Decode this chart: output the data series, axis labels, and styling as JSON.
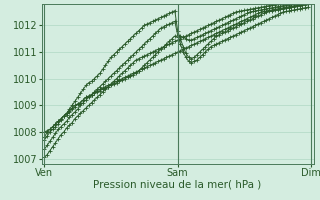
{
  "title": "Pression niveau de la mer( hPa )",
  "bg_color": "#d4ede0",
  "grid_color": "#b0d8c4",
  "line_color": "#2a5a2a",
  "vline_color": "#4a7a5a",
  "marker": "+",
  "xtick_labels": [
    "Ven",
    "Sam",
    "Dim"
  ],
  "xtick_positions": [
    0,
    48,
    96
  ],
  "ylim": [
    1006.8,
    1012.8
  ],
  "xlim": [
    -1,
    97
  ],
  "yticks": [
    1007,
    1008,
    1009,
    1010,
    1011,
    1012
  ],
  "series": [
    {
      "x": [
        0,
        1,
        2,
        3,
        4,
        5,
        6,
        7,
        8,
        9,
        10,
        11,
        12,
        13,
        14,
        15,
        16,
        17,
        18,
        19,
        20,
        21,
        22,
        23,
        24,
        25,
        26,
        27,
        28,
        29,
        30,
        31,
        32,
        33,
        34,
        35,
        36,
        37,
        38,
        39,
        40,
        41,
        42,
        43,
        44,
        45,
        46,
        47,
        48,
        49,
        50,
        51,
        52,
        53,
        54,
        55,
        56,
        57,
        58,
        59,
        60,
        61,
        62,
        63,
        64,
        65,
        66,
        67,
        68,
        69,
        70,
        71,
        72,
        73,
        74,
        75,
        76,
        77,
        78,
        79,
        80,
        81,
        82,
        83,
        84,
        85,
        86,
        87,
        88,
        89,
        90,
        91,
        92,
        93,
        94,
        95
      ],
      "y": [
        1007.05,
        1007.15,
        1007.3,
        1007.45,
        1007.6,
        1007.75,
        1007.9,
        1008.0,
        1008.15,
        1008.25,
        1008.35,
        1008.5,
        1008.6,
        1008.7,
        1008.8,
        1008.9,
        1009.0,
        1009.1,
        1009.2,
        1009.3,
        1009.4,
        1009.5,
        1009.6,
        1009.7,
        1009.8,
        1009.9,
        1010.0,
        1010.1,
        1010.2,
        1010.3,
        1010.4,
        1010.5,
        1010.6,
        1010.7,
        1010.75,
        1010.8,
        1010.85,
        1010.9,
        1010.95,
        1011.0,
        1011.05,
        1011.1,
        1011.15,
        1011.2,
        1011.25,
        1011.3,
        1011.35,
        1011.4,
        1011.45,
        1011.5,
        1011.55,
        1011.6,
        1011.65,
        1011.7,
        1011.75,
        1011.8,
        1011.85,
        1011.9,
        1011.95,
        1012.0,
        1012.05,
        1012.1,
        1012.15,
        1012.2,
        1012.25,
        1012.3,
        1012.35,
        1012.4,
        1012.45,
        1012.5,
        1012.52,
        1012.54,
        1012.56,
        1012.58,
        1012.6,
        1012.62,
        1012.64,
        1012.66,
        1012.68,
        1012.7,
        1012.72,
        1012.74,
        1012.76,
        1012.78,
        1012.8,
        1012.82,
        1012.84,
        1012.86,
        1012.88,
        1012.9,
        1012.92,
        1012.94,
        1012.96,
        1012.98,
        1013.0,
        1013.02
      ]
    },
    {
      "x": [
        0,
        1,
        2,
        3,
        4,
        5,
        6,
        7,
        8,
        9,
        10,
        11,
        12,
        13,
        14,
        15,
        16,
        17,
        18,
        19,
        20,
        21,
        22,
        23,
        24,
        25,
        26,
        27,
        28,
        29,
        30,
        31,
        32,
        33,
        34,
        35,
        36,
        37,
        38,
        39,
        40,
        41,
        42,
        43,
        44,
        45,
        46,
        47,
        48,
        49,
        50,
        51,
        52,
        53,
        54,
        55,
        56,
        57,
        58,
        59,
        60,
        61,
        62,
        63,
        64,
        65,
        66,
        67,
        68,
        69,
        70,
        71,
        72,
        73,
        74,
        75,
        76,
        77,
        78,
        79,
        80,
        81,
        82,
        83,
        84,
        85,
        86,
        87,
        88,
        89,
        90,
        91,
        92,
        93,
        94,
        95
      ],
      "y": [
        1007.7,
        1007.85,
        1008.0,
        1008.1,
        1008.2,
        1008.3,
        1008.45,
        1008.6,
        1008.7,
        1008.85,
        1009.0,
        1009.15,
        1009.3,
        1009.45,
        1009.6,
        1009.75,
        1009.85,
        1009.9,
        1010.0,
        1010.1,
        1010.2,
        1010.35,
        1010.5,
        1010.65,
        1010.8,
        1010.9,
        1011.0,
        1011.1,
        1011.2,
        1011.3,
        1011.4,
        1011.5,
        1011.6,
        1011.7,
        1011.8,
        1011.9,
        1012.0,
        1012.05,
        1012.1,
        1012.15,
        1012.2,
        1012.25,
        1012.3,
        1012.35,
        1012.4,
        1012.45,
        1012.5,
        1012.55,
        1011.8,
        1011.5,
        1011.2,
        1010.95,
        1010.8,
        1010.75,
        1010.8,
        1010.9,
        1011.0,
        1011.1,
        1011.2,
        1011.3,
        1011.4,
        1011.5,
        1011.6,
        1011.65,
        1011.7,
        1011.75,
        1011.8,
        1011.85,
        1011.9,
        1011.95,
        1012.0,
        1012.05,
        1012.1,
        1012.15,
        1012.2,
        1012.25,
        1012.3,
        1012.35,
        1012.4,
        1012.45,
        1012.5,
        1012.52,
        1012.54,
        1012.56,
        1012.58,
        1012.6,
        1012.62,
        1012.64,
        1012.66,
        1012.68,
        1012.7,
        1012.72,
        1012.74,
        1012.76,
        1012.78,
        1012.8
      ]
    },
    {
      "x": [
        0,
        1,
        2,
        3,
        4,
        5,
        6,
        7,
        8,
        9,
        10,
        11,
        12,
        13,
        14,
        15,
        16,
        17,
        18,
        19,
        20,
        21,
        22,
        23,
        24,
        25,
        26,
        27,
        28,
        29,
        30,
        31,
        32,
        33,
        34,
        35,
        36,
        37,
        38,
        39,
        40,
        41,
        42,
        43,
        44,
        45,
        46,
        47,
        48,
        49,
        50,
        51,
        52,
        53,
        54,
        55,
        56,
        57,
        58,
        59,
        60,
        61,
        62,
        63,
        64,
        65,
        66,
        67,
        68,
        69,
        70,
        71,
        72,
        73,
        74,
        75,
        76,
        77,
        78,
        79,
        80,
        81,
        82,
        83,
        84,
        85,
        86,
        87,
        88,
        89,
        90,
        91,
        92,
        93,
        94,
        95
      ],
      "y": [
        1008.0,
        1008.05,
        1008.1,
        1008.2,
        1008.3,
        1008.4,
        1008.5,
        1008.6,
        1008.7,
        1008.8,
        1008.9,
        1009.0,
        1009.05,
        1009.1,
        1009.2,
        1009.3,
        1009.35,
        1009.4,
        1009.5,
        1009.55,
        1009.6,
        1009.65,
        1009.7,
        1009.75,
        1009.8,
        1009.85,
        1009.9,
        1009.95,
        1010.0,
        1010.05,
        1010.1,
        1010.15,
        1010.2,
        1010.25,
        1010.3,
        1010.35,
        1010.4,
        1010.45,
        1010.5,
        1010.55,
        1010.6,
        1010.65,
        1010.7,
        1010.75,
        1010.8,
        1010.85,
        1010.9,
        1010.95,
        1011.0,
        1011.05,
        1011.1,
        1011.15,
        1011.2,
        1011.25,
        1011.3,
        1011.35,
        1011.4,
        1011.45,
        1011.5,
        1011.55,
        1011.6,
        1011.65,
        1011.7,
        1011.75,
        1011.8,
        1011.85,
        1011.9,
        1011.95,
        1012.0,
        1012.05,
        1012.1,
        1012.15,
        1012.2,
        1012.25,
        1012.3,
        1012.35,
        1012.4,
        1012.45,
        1012.5,
        1012.52,
        1012.54,
        1012.56,
        1012.58,
        1012.6,
        1012.62,
        1012.64,
        1012.66,
        1012.68,
        1012.7,
        1012.72,
        1012.74,
        1012.76,
        1012.78,
        1012.8,
        1012.82,
        1012.84
      ]
    },
    {
      "x": [
        0,
        1,
        2,
        3,
        4,
        5,
        6,
        7,
        8,
        9,
        10,
        11,
        12,
        13,
        14,
        15,
        16,
        17,
        18,
        19,
        20,
        21,
        22,
        23,
        24,
        25,
        26,
        27,
        28,
        29,
        30,
        31,
        32,
        33,
        34,
        35,
        36,
        37,
        38,
        39,
        40,
        41,
        42,
        43,
        44,
        45,
        46,
        47,
        48,
        49,
        50,
        51,
        52,
        53,
        54,
        55,
        56,
        57,
        58,
        59,
        60,
        61,
        62,
        63,
        64,
        65,
        66,
        67,
        68,
        69,
        70,
        71,
        72,
        73,
        74,
        75,
        76,
        77,
        78,
        79,
        80,
        81,
        82,
        83,
        84,
        85,
        86,
        87,
        88,
        89,
        90,
        91,
        92,
        93,
        94,
        95
      ],
      "y": [
        1007.8,
        1008.0,
        1008.1,
        1008.2,
        1008.3,
        1008.4,
        1008.5,
        1008.6,
        1008.65,
        1008.75,
        1008.85,
        1008.95,
        1009.05,
        1009.1,
        1009.2,
        1009.3,
        1009.35,
        1009.4,
        1009.45,
        1009.5,
        1009.55,
        1009.6,
        1009.65,
        1009.7,
        1009.75,
        1009.8,
        1009.85,
        1009.9,
        1009.95,
        1010.0,
        1010.05,
        1010.1,
        1010.15,
        1010.2,
        1010.3,
        1010.4,
        1010.5,
        1010.6,
        1010.7,
        1010.8,
        1010.9,
        1011.0,
        1011.1,
        1011.2,
        1011.3,
        1011.4,
        1011.5,
        1011.6,
        1011.55,
        1011.6,
        1011.55,
        1011.5,
        1011.45,
        1011.45,
        1011.5,
        1011.55,
        1011.6,
        1011.65,
        1011.7,
        1011.75,
        1011.8,
        1011.85,
        1011.9,
        1011.95,
        1012.0,
        1012.05,
        1012.1,
        1012.15,
        1012.2,
        1012.25,
        1012.3,
        1012.35,
        1012.4,
        1012.45,
        1012.5,
        1012.52,
        1012.54,
        1012.56,
        1012.58,
        1012.6,
        1012.62,
        1012.64,
        1012.66,
        1012.68,
        1012.7,
        1012.72,
        1012.74,
        1012.76,
        1012.78,
        1012.8,
        1012.82,
        1012.84,
        1012.86,
        1012.88,
        1012.9,
        1012.92
      ]
    },
    {
      "x": [
        0,
        1,
        2,
        3,
        4,
        5,
        6,
        7,
        8,
        9,
        10,
        11,
        12,
        13,
        14,
        15,
        16,
        17,
        18,
        19,
        20,
        21,
        22,
        23,
        24,
        25,
        26,
        27,
        28,
        29,
        30,
        31,
        32,
        33,
        34,
        35,
        36,
        37,
        38,
        39,
        40,
        41,
        42,
        43,
        44,
        45,
        46,
        47,
        48,
        49,
        50,
        51,
        52,
        53,
        54,
        55,
        56,
        57,
        58,
        59,
        60,
        61,
        62,
        63,
        64,
        65,
        66,
        67,
        68,
        69,
        70,
        71,
        72,
        73,
        74,
        75,
        76,
        77,
        78,
        79,
        80,
        81,
        82,
        83,
        84,
        85,
        86,
        87,
        88,
        89,
        90,
        91,
        92,
        93,
        94,
        95
      ],
      "y": [
        1007.35,
        1007.5,
        1007.65,
        1007.8,
        1007.95,
        1008.1,
        1008.2,
        1008.3,
        1008.4,
        1008.55,
        1008.65,
        1008.75,
        1008.85,
        1009.0,
        1009.1,
        1009.2,
        1009.3,
        1009.4,
        1009.5,
        1009.6,
        1009.7,
        1009.8,
        1009.9,
        1010.0,
        1010.1,
        1010.2,
        1010.3,
        1010.4,
        1010.5,
        1010.6,
        1010.7,
        1010.8,
        1010.9,
        1011.0,
        1011.1,
        1011.2,
        1011.3,
        1011.4,
        1011.5,
        1011.6,
        1011.7,
        1011.8,
        1011.9,
        1011.95,
        1012.0,
        1012.05,
        1012.1,
        1012.15,
        1011.65,
        1011.3,
        1011.0,
        1010.8,
        1010.65,
        1010.6,
        1010.65,
        1010.7,
        1010.8,
        1010.9,
        1011.0,
        1011.1,
        1011.2,
        1011.25,
        1011.3,
        1011.35,
        1011.4,
        1011.45,
        1011.5,
        1011.55,
        1011.6,
        1011.65,
        1011.7,
        1011.75,
        1011.8,
        1011.85,
        1011.9,
        1011.95,
        1012.0,
        1012.05,
        1012.1,
        1012.15,
        1012.2,
        1012.25,
        1012.3,
        1012.35,
        1012.4,
        1012.45,
        1012.5,
        1012.52,
        1012.54,
        1012.56,
        1012.58,
        1012.6,
        1012.62,
        1012.64,
        1012.66,
        1012.68
      ]
    }
  ]
}
